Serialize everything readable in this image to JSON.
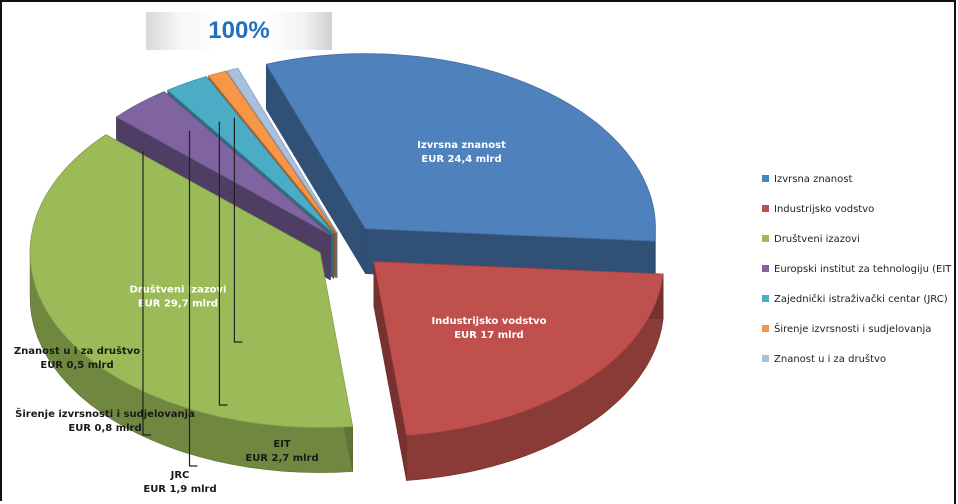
{
  "header": {
    "zoom_label": "100%"
  },
  "chart_data": {
    "type": "pie",
    "categories": [
      "Izvrsna znanost",
      "Industrijsko vodstvo",
      "Društveni izazovi",
      "Europski institut za tehnologiju (EIT",
      "Zajednički istraživački centar (JRC)",
      "Širenje izvrsnosti i sudjelovanja",
      "Znanost u i za društvo"
    ],
    "values": [
      24.4,
      17,
      29.7,
      2.7,
      1.9,
      0.8,
      0.5
    ],
    "unit": "EUR mlrd",
    "colors": [
      "#4f81bd",
      "#c0504d",
      "#9bbb59",
      "#8064a2",
      "#4bacc6",
      "#f79646",
      "#a9bfe0"
    ],
    "legend_position": "right",
    "three_d": true,
    "exploded": true,
    "data_labels": [
      {
        "name": "Izvrsna znanost",
        "value": "EUR 24,4 mlrd"
      },
      {
        "name": "Industrijsko vodstvo",
        "value": "EUR 17 mlrd"
      },
      {
        "name": "Društveni izazovi",
        "value": "EUR 29,7 mlrd"
      },
      {
        "name": "EIT",
        "value": "EUR 2,7 mlrd"
      },
      {
        "name": "JRC",
        "value": "EUR 1,9 mlrd"
      },
      {
        "name": "Širenje izvrsnosti i sudjelovanja",
        "value": "EUR 0,8 mlrd"
      },
      {
        "name": "Znanost u i za društvo",
        "value": "EUR 0,5 mlrd"
      }
    ],
    "legend": [
      "Izvrsna znanost",
      "Industrijsko vodstvo",
      "Društveni izazovi",
      "Europski institut za tehnologiju (EIT",
      "Zajednički istraživački centar (JRC)",
      "Širenje izvrsnosti i sudjelovanja",
      "Znanost u i za društvo"
    ]
  }
}
